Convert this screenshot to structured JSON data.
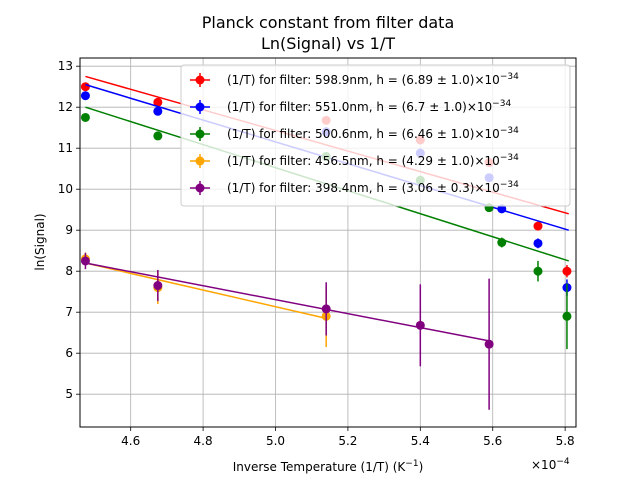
{
  "chart_data": {
    "type": "scatter",
    "title_line1": "Planck constant from filter data",
    "title_line2": "Ln(Signal) vs 1/T",
    "xlabel": "Inverse Temperature (1/T) (K",
    "xlabel_sup": "−1",
    "xlabel_close": ")",
    "ylabel": "ln(Signal)",
    "x_offset_base": "×10",
    "x_offset_exp": "−4",
    "xlim": [
      4.46,
      5.83
    ],
    "ylim": [
      4.2,
      13.2
    ],
    "xticks": [
      4.6,
      4.8,
      5.0,
      5.2,
      5.4,
      5.6,
      5.8
    ],
    "xtick_labels": [
      "4.6",
      "4.8",
      "5.0",
      "5.2",
      "5.4",
      "5.6",
      "5.8"
    ],
    "yticks": [
      5,
      6,
      7,
      8,
      9,
      10,
      11,
      12,
      13
    ],
    "ytick_labels": [
      "5",
      "6",
      "7",
      "8",
      "9",
      "10",
      "11",
      "12",
      "13"
    ],
    "grid": true,
    "legend_position": "top-right",
    "series": [
      {
        "name": "(1/T) for filter: 598.9nm, h = (6.89 ± 1.0)×10",
        "name_exp": "−34",
        "color": "#ff0000",
        "points": [
          [
            4.475,
            12.5,
            0.06
          ],
          [
            4.675,
            12.12,
            0.06
          ],
          [
            5.14,
            11.68,
            0.06
          ],
          [
            5.4,
            11.2,
            0.08
          ],
          [
            5.59,
            10.65,
            0.1
          ],
          [
            5.725,
            9.1,
            0.1
          ],
          [
            5.805,
            8.0,
            0.15
          ]
        ],
        "fit": [
          [
            4.475,
            12.75
          ],
          [
            5.81,
            9.4
          ]
        ]
      },
      {
        "name": "(1/T) for filter: 551.0nm, h = (6.7 ± 1.0)×10",
        "name_exp": "−34",
        "color": "#0000ff",
        "points": [
          [
            4.475,
            12.28,
            0.06
          ],
          [
            4.675,
            11.9,
            0.06
          ],
          [
            5.14,
            11.4,
            0.06
          ],
          [
            5.4,
            10.88,
            0.08
          ],
          [
            5.59,
            10.28,
            0.1
          ],
          [
            5.625,
            9.52,
            0.1
          ],
          [
            5.725,
            8.68,
            0.12
          ],
          [
            5.805,
            7.6,
            0.2
          ]
        ],
        "fit": [
          [
            4.475,
            12.55
          ],
          [
            5.81,
            9.0
          ]
        ]
      },
      {
        "name": "(1/T) for filter: 500.6nm, h = (6.46 ± 1.0)×10",
        "name_exp": "−34",
        "color": "#008000",
        "points": [
          [
            4.475,
            11.75,
            0.06
          ],
          [
            4.675,
            11.3,
            0.06
          ],
          [
            5.14,
            10.8,
            0.06
          ],
          [
            5.4,
            10.22,
            0.08
          ],
          [
            5.59,
            9.55,
            0.1
          ],
          [
            5.625,
            8.7,
            0.12
          ],
          [
            5.725,
            8.0,
            0.25
          ],
          [
            5.805,
            6.9,
            0.8
          ]
        ],
        "fit": [
          [
            4.475,
            12.0
          ],
          [
            5.81,
            8.25
          ]
        ]
      },
      {
        "name": "(1/T) for filter: 456.5nm, h = (4.29 ± 1.0)×10",
        "name_exp": "−34",
        "color": "#ffa500",
        "points": [
          [
            4.475,
            8.3,
            0.15
          ],
          [
            4.675,
            7.6,
            0.4
          ],
          [
            5.14,
            6.9,
            0.75
          ]
        ],
        "fit": [
          [
            4.475,
            8.2
          ],
          [
            5.14,
            6.85
          ]
        ]
      },
      {
        "name": "(1/T) for filter: 398.4nm, h = (3.06 ± 0.3)×10",
        "name_exp": "−34",
        "color": "#800080",
        "points": [
          [
            4.475,
            8.25,
            0.2
          ],
          [
            4.675,
            7.65,
            0.38
          ],
          [
            5.14,
            7.08,
            0.65
          ],
          [
            5.4,
            6.68,
            1.0
          ],
          [
            5.59,
            6.22,
            1.6
          ]
        ],
        "fit": [
          [
            4.475,
            8.2
          ],
          [
            5.59,
            6.3
          ]
        ]
      }
    ]
  }
}
